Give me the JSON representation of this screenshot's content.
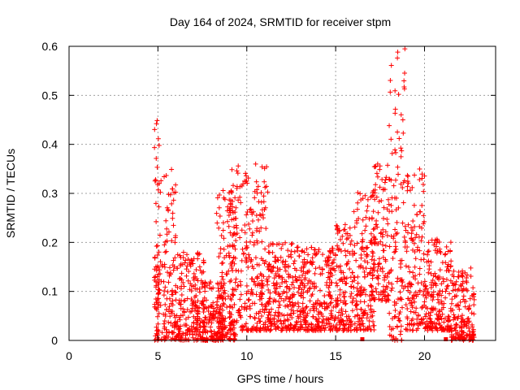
{
  "chart_data": {
    "type": "scatter",
    "title": "Day 164 of 2024, SRMTID for receiver stpm",
    "xlabel": "GPS time / hours",
    "ylabel": "SRMTID / TECUs",
    "xlim": [
      0,
      24
    ],
    "ylim": [
      0,
      0.6
    ],
    "xticks": [
      0,
      5,
      10,
      15,
      20
    ],
    "yticks": [
      0,
      0.1,
      0.2,
      0.3,
      0.4,
      0.5,
      0.6
    ],
    "grid": true,
    "marker": "+",
    "color": "#ff0000",
    "series": [
      {
        "name": "SRMTID",
        "clusters": [
          {
            "x": [
              4.8,
              5.1
            ],
            "y": [
              0.0,
              0.48
            ]
          },
          {
            "x": [
              4.8,
              5.1
            ],
            "y": [
              0.0,
              0.18
            ]
          },
          {
            "x": [
              5.1,
              6.0
            ],
            "y": [
              0.0,
              0.36
            ]
          },
          {
            "x": [
              6.0,
              7.6
            ],
            "y": [
              0.0,
              0.18
            ]
          },
          {
            "x": [
              7.5,
              8.7
            ],
            "y": [
              0.0,
              0.12
            ]
          },
          {
            "x": [
              8.3,
              9.4
            ],
            "y": [
              0.0,
              0.31
            ]
          },
          {
            "x": [
              9.0,
              11.2
            ],
            "y": [
              0.02,
              0.36
            ]
          },
          {
            "x": [
              11.2,
              13.0
            ],
            "y": [
              0.02,
              0.2
            ]
          },
          {
            "x": [
              13.0,
              15.0
            ],
            "y": [
              0.02,
              0.19
            ]
          },
          {
            "x": [
              15.0,
              16.1
            ],
            "y": [
              0.02,
              0.24
            ]
          },
          {
            "x": [
              16.0,
              17.2
            ],
            "y": [
              0.02,
              0.32
            ]
          },
          {
            "x": [
              17.0,
              18.0
            ],
            "y": [
              0.08,
              0.36
            ]
          },
          {
            "x": [
              18.0,
              18.9
            ],
            "y": [
              0.0,
              0.6
            ]
          },
          {
            "x": [
              18.9,
              20.0
            ],
            "y": [
              0.02,
              0.35
            ]
          },
          {
            "x": [
              20.0,
              21.5
            ],
            "y": [
              0.02,
              0.21
            ]
          },
          {
            "x": [
              21.5,
              22.8
            ],
            "y": [
              0.0,
              0.15
            ]
          }
        ]
      }
    ],
    "zero_markers_x": [
      16.5,
      21.2,
      22.2
    ]
  }
}
